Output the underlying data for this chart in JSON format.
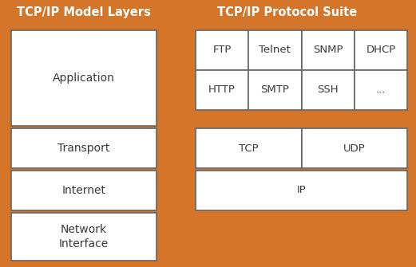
{
  "bg_color": "#D4752A",
  "box_color": "#FFFFFF",
  "text_color_title": "#FFFFFF",
  "text_color_box": "#3A3A3A",
  "title_left": "TCP/IP Model Layers",
  "title_right": "TCP/IP Protocol Suite",
  "left_layers": [
    "Application",
    "Transport",
    "Internet",
    "Network\nInterface"
  ],
  "right_app_row1": [
    "FTP",
    "Telnet",
    "SNMP",
    "DHCP"
  ],
  "right_app_row2": [
    "HTTP",
    "SMTP",
    "SSH",
    "..."
  ],
  "right_transport": [
    "TCP",
    "UDP"
  ],
  "right_internet": [
    "IP"
  ],
  "title_fontsize": 10.5,
  "layer_fontsize": 10,
  "proto_fontsize": 9.5
}
